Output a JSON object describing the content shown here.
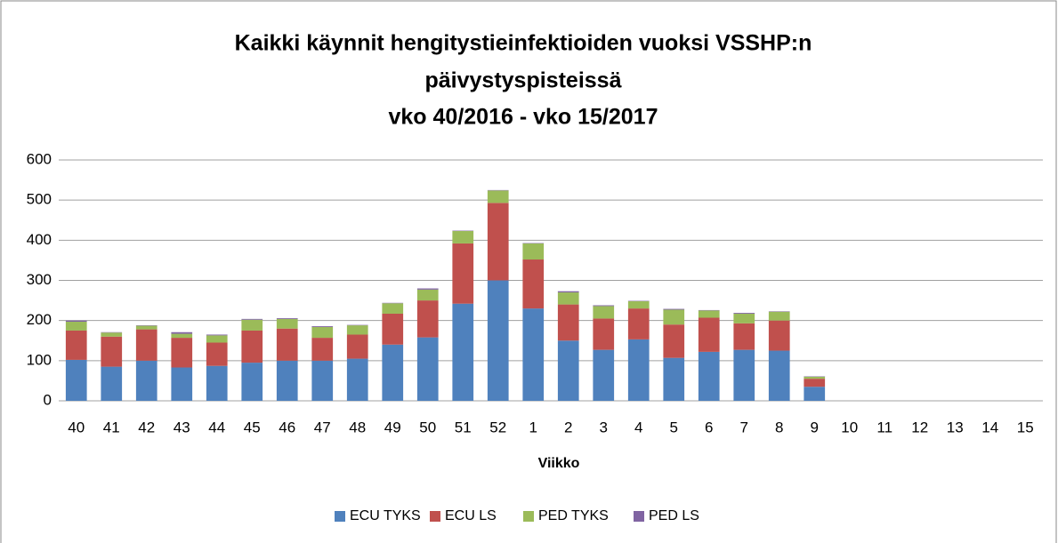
{
  "chart_data": {
    "type": "stacked_bar",
    "title": [
      "Kaikki käynnit hengitystieinfektioiden vuoksi VSSHP:n",
      "päivystyspisteissä",
      "vko 40/2016 - vko 15/2017"
    ],
    "x_label": "Viikko",
    "categories": [
      "40",
      "41",
      "42",
      "43",
      "44",
      "45",
      "46",
      "47",
      "48",
      "49",
      "50",
      "51",
      "52",
      "1",
      "2",
      "3",
      "4",
      "5",
      "6",
      "7",
      "8",
      "9",
      "10",
      "11",
      "12",
      "13",
      "14",
      "15"
    ],
    "series": [
      {
        "name": "ECU TYKS",
        "color": "#4f81bd",
        "values": [
          102,
          85,
          100,
          83,
          87,
          95,
          100,
          100,
          105,
          140,
          158,
          242,
          300,
          230,
          150,
          127,
          153,
          107,
          122,
          127,
          125,
          35,
          null,
          null,
          null,
          null,
          null,
          null
        ]
      },
      {
        "name": "ECU LS",
        "color": "#c0504d",
        "values": [
          73,
          75,
          78,
          74,
          58,
          80,
          80,
          57,
          60,
          77,
          92,
          150,
          193,
          122,
          90,
          78,
          77,
          83,
          85,
          66,
          75,
          20,
          null,
          null,
          null,
          null,
          null,
          null
        ]
      },
      {
        "name": "PED TYKS",
        "color": "#9bbb59",
        "values": [
          22,
          10,
          9,
          10,
          18,
          27,
          24,
          27,
          23,
          26,
          27,
          31,
          31,
          40,
          30,
          31,
          18,
          37,
          18,
          24,
          22,
          5,
          null,
          null,
          null,
          null,
          null,
          null
        ]
      },
      {
        "name": "PED LS",
        "color": "#8064a2",
        "values": [
          3,
          1,
          1,
          4,
          2,
          2,
          2,
          2,
          1,
          1,
          3,
          1,
          1,
          1,
          3,
          2,
          1,
          2,
          1,
          2,
          1,
          1,
          null,
          null,
          null,
          null,
          null,
          null
        ]
      }
    ],
    "ylim": [
      0,
      600
    ],
    "yticks": [
      0,
      100,
      200,
      300,
      400,
      500,
      600
    ],
    "grid": true,
    "legend": "bottom"
  }
}
